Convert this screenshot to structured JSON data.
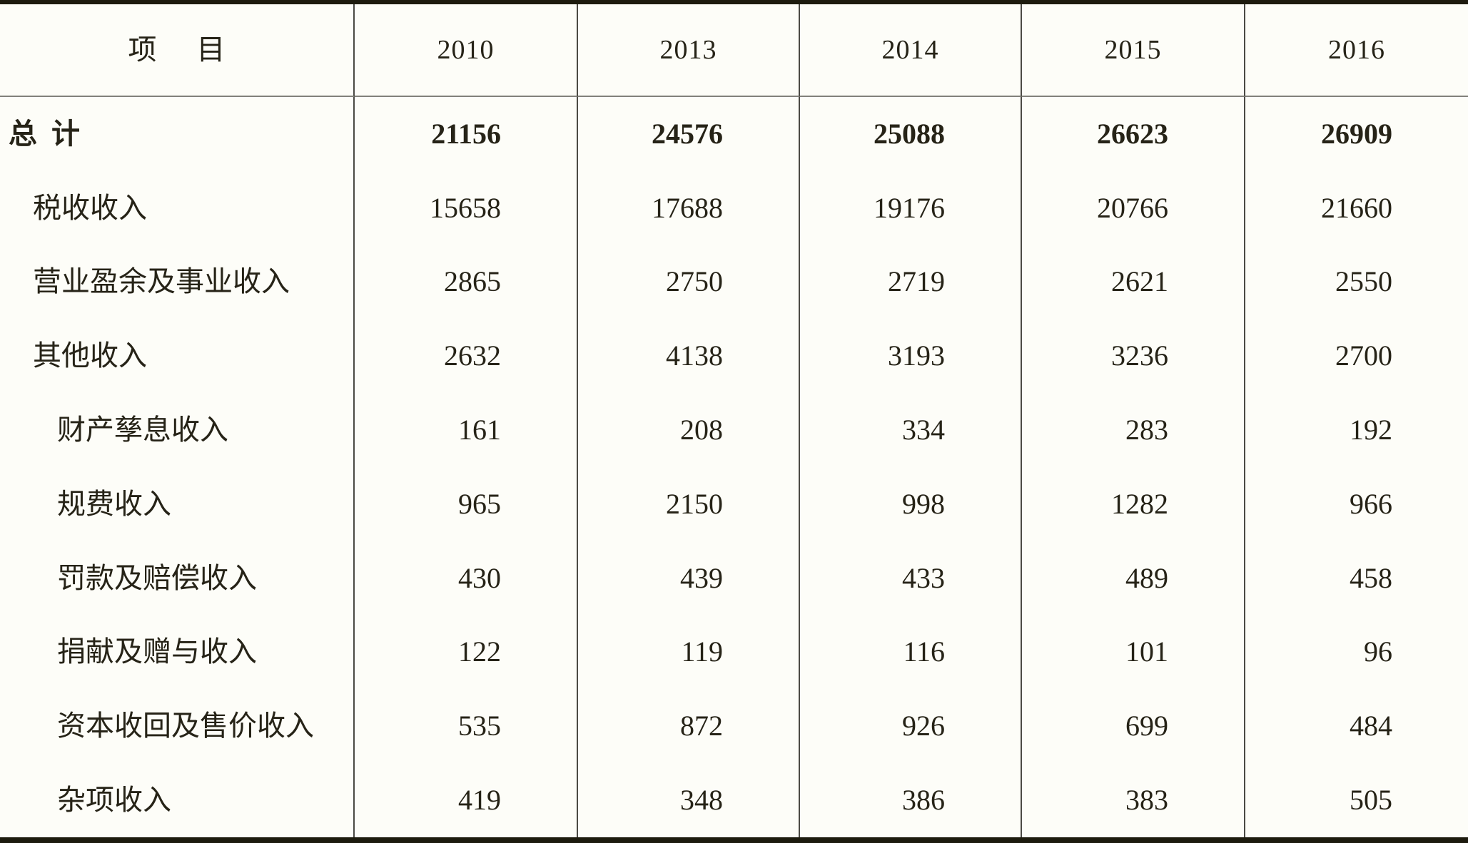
{
  "table": {
    "header": {
      "item_label": "项 目",
      "years": [
        "2010",
        "2013",
        "2014",
        "2015",
        "2016"
      ]
    },
    "rows": [
      {
        "label": "总 计",
        "indent": 0,
        "bold": true,
        "values": [
          "21156",
          "24576",
          "25088",
          "26623",
          "26909"
        ]
      },
      {
        "label": "税收收入",
        "indent": 1,
        "bold": false,
        "values": [
          "15658",
          "17688",
          "19176",
          "20766",
          "21660"
        ]
      },
      {
        "label": "营业盈余及事业收入",
        "indent": 1,
        "bold": false,
        "values": [
          "2865",
          "2750",
          "2719",
          "2621",
          "2550"
        ]
      },
      {
        "label": "其他收入",
        "indent": 1,
        "bold": false,
        "values": [
          "2632",
          "4138",
          "3193",
          "3236",
          "2700"
        ]
      },
      {
        "label": "财产孳息收入",
        "indent": 2,
        "bold": false,
        "values": [
          "161",
          "208",
          "334",
          "283",
          "192"
        ]
      },
      {
        "label": "规费收入",
        "indent": 2,
        "bold": false,
        "values": [
          "965",
          "2150",
          "998",
          "1282",
          "966"
        ]
      },
      {
        "label": "罚款及赔偿收入",
        "indent": 2,
        "bold": false,
        "values": [
          "430",
          "439",
          "433",
          "489",
          "458"
        ]
      },
      {
        "label": "捐献及赠与收入",
        "indent": 2,
        "bold": false,
        "values": [
          "122",
          "119",
          "116",
          "101",
          "96"
        ]
      },
      {
        "label": "资本收回及售价收入",
        "indent": 2,
        "bold": false,
        "values": [
          "535",
          "872",
          "926",
          "699",
          "484"
        ]
      },
      {
        "label": "杂项收入",
        "indent": 2,
        "bold": false,
        "values": [
          "419",
          "348",
          "386",
          "383",
          "505"
        ]
      }
    ]
  },
  "colors": {
    "background": "#fdfdf8",
    "text": "#262317",
    "border_heavy": "#1d1b0e",
    "grid_line": "#4b4a44",
    "header_rule": "#82817b"
  },
  "chart_data": {
    "type": "table",
    "title": "",
    "categories": [
      "2010",
      "2013",
      "2014",
      "2015",
      "2016"
    ],
    "series": [
      {
        "name": "总 计",
        "values": [
          21156,
          24576,
          25088,
          26623,
          26909
        ]
      },
      {
        "name": "税收收入",
        "values": [
          15658,
          17688,
          19176,
          20766,
          21660
        ]
      },
      {
        "name": "营业盈余及事业收入",
        "values": [
          2865,
          2750,
          2719,
          2621,
          2550
        ]
      },
      {
        "name": "其他收入",
        "values": [
          2632,
          4138,
          3193,
          3236,
          2700
        ]
      },
      {
        "name": "财产孳息收入",
        "values": [
          161,
          208,
          334,
          283,
          192
        ]
      },
      {
        "name": "规费收入",
        "values": [
          965,
          2150,
          998,
          1282,
          966
        ]
      },
      {
        "name": "罚款及赔偿收入",
        "values": [
          430,
          439,
          433,
          489,
          458
        ]
      },
      {
        "name": "捐献及赠与收入",
        "values": [
          122,
          119,
          116,
          101,
          96
        ]
      },
      {
        "name": "资本收回及售价收入",
        "values": [
          535,
          872,
          926,
          699,
          484
        ]
      },
      {
        "name": "杂项收入",
        "values": [
          419,
          348,
          386,
          383,
          505
        ]
      }
    ]
  }
}
